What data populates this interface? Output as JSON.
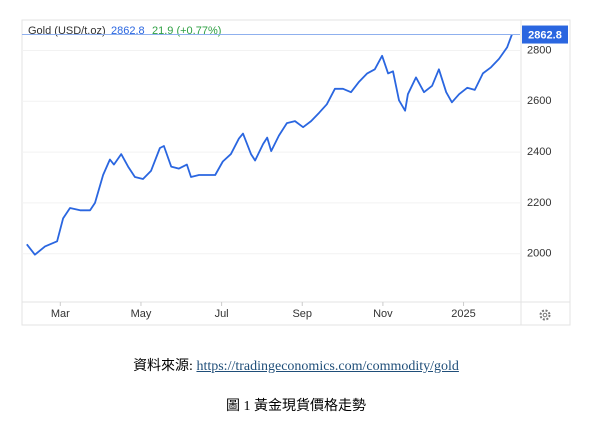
{
  "chart_data": {
    "type": "line",
    "title": "Gold (USD/t.oz)",
    "price": 2862.8,
    "change": "21.9 (+0.77%)",
    "x": [
      2.17,
      2.37,
      2.62,
      2.92,
      3.07,
      3.24,
      3.49,
      3.74,
      3.86,
      4.06,
      4.23,
      4.33,
      4.51,
      4.68,
      4.85,
      5.05,
      5.25,
      5.47,
      5.57,
      5.75,
      5.94,
      6.14,
      6.24,
      6.44,
      6.64,
      6.84,
      7.03,
      7.23,
      7.43,
      7.53,
      7.73,
      7.83,
      8.03,
      8.13,
      8.23,
      8.42,
      8.62,
      8.82,
      9.02,
      9.22,
      9.42,
      9.61,
      9.81,
      10.01,
      10.21,
      10.41,
      10.61,
      10.8,
      10.98,
      11.13,
      11.25,
      11.4,
      11.55,
      11.62,
      11.82,
      12.02,
      12.22,
      12.39,
      12.57,
      12.71,
      12.89,
      13.09,
      13.28,
      13.48,
      13.68,
      13.88,
      14.08,
      14.2
    ],
    "series": [
      {
        "name": "Gold",
        "color": "#2a66e0",
        "values": [
          2037,
          1996,
          2029,
          2049,
          2139,
          2180,
          2171,
          2171,
          2200,
          2310,
          2371,
          2351,
          2392,
          2343,
          2302,
          2294,
          2326,
          2416,
          2424,
          2343,
          2335,
          2351,
          2302,
          2310,
          2310,
          2310,
          2363,
          2392,
          2453,
          2473,
          2392,
          2367,
          2432,
          2457,
          2404,
          2465,
          2514,
          2522,
          2498,
          2522,
          2555,
          2588,
          2649,
          2649,
          2636,
          2677,
          2710,
          2726,
          2779,
          2710,
          2718,
          2604,
          2563,
          2628,
          2694,
          2636,
          2661,
          2726,
          2636,
          2596,
          2628,
          2653,
          2645,
          2710,
          2734,
          2767,
          2812,
          2862.8
        ]
      }
    ],
    "xlim": [
      2.05,
      14.4
    ],
    "xticks": [
      {
        "value": 3,
        "label": "Mar"
      },
      {
        "value": 5,
        "label": "May"
      },
      {
        "value": 7,
        "label": "Jul"
      },
      {
        "value": 9,
        "label": "Sep"
      },
      {
        "value": 11,
        "label": "Nov"
      },
      {
        "value": 13,
        "label": "2025"
      }
    ],
    "ylim": [
      1810,
      2920
    ],
    "yticks": [
      2000,
      2200,
      2400,
      2600,
      2800
    ],
    "grid": true
  },
  "caption": {
    "source_label": "資料來源: ",
    "source_url": "https://tradingeconomics.com/commodity/gold",
    "figure": "圖 1  黃金現貨價格走勢"
  }
}
